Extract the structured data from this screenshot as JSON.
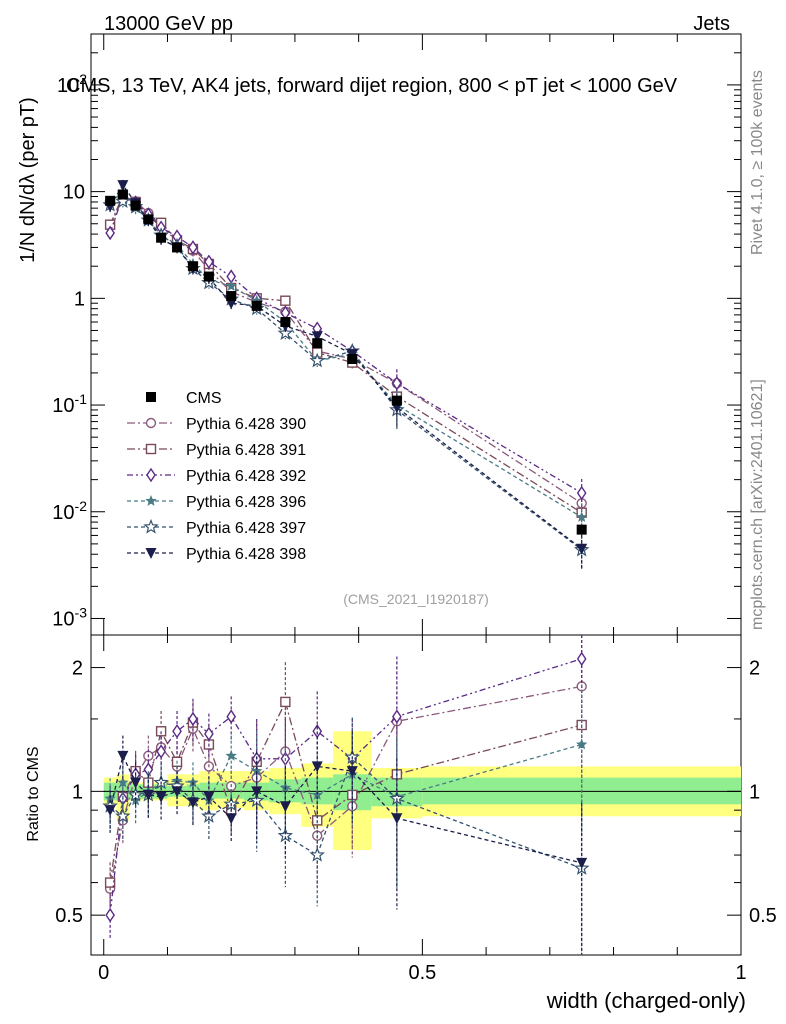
{
  "header": {
    "left": "13000 GeV pp",
    "right": "Jets"
  },
  "side_text": {
    "rivet": "Rivet 4.1.0, ≥ 100k events",
    "mcplots": "mcplots.cern.ch [arXiv:2401.10621]"
  },
  "ylabel": "1/N dN/dλ (per pT)",
  "ratio_ylabel": "Ratio to CMS",
  "watermark": "(CMS_2021_I1920187)",
  "colors": {
    "CMS": "#000000",
    "Pythia 6.428 390": "#8b5a7c",
    "Pythia 6.428 391": "#7a4a58",
    "Pythia 6.428 392": "#5b2a86",
    "Pythia 6.428 396": "#4a7a86",
    "Pythia 6.428 397": "#35526e",
    "Pythia 6.428 398": "#1b1e4a",
    "band_inner": "#90ee90",
    "band_outer": "#ffff80"
  },
  "chart_data": [
    {
      "type": "scatter",
      "title": "CMS, 13 TeV, AK4 jets, forward dijet region, 800 < pT jet < 1000 GeV",
      "xlabel": "width (charged-only)",
      "ylabel": "1/N dN/dλ",
      "yscale": "log",
      "xlim": [
        -0.02,
        1.0
      ],
      "ylim": [
        0.0007,
        300
      ],
      "x": [
        0.01,
        0.03,
        0.05,
        0.07,
        0.09,
        0.115,
        0.14,
        0.165,
        0.2,
        0.24,
        0.285,
        0.335,
        0.39,
        0.46,
        0.75
      ],
      "series": [
        {
          "name": "CMS",
          "values": [
            8.2,
            9.4,
            7.4,
            5.5,
            3.7,
            3.0,
            2.0,
            1.6,
            1.05,
            0.85,
            0.6,
            0.38,
            0.27,
            0.11,
            0.0068
          ]
        },
        {
          "name": "Pythia 6.428 390",
          "values": [
            4.8,
            8.6,
            8.1,
            6.3,
            4.8,
            3.4,
            2.8,
            1.85,
            1.15,
            0.92,
            0.75,
            0.32,
            0.27,
            0.16,
            0.012
          ]
        },
        {
          "name": "Pythia 6.428 391",
          "values": [
            4.9,
            9.2,
            8.0,
            5.7,
            5.1,
            3.5,
            2.9,
            2.1,
            1.25,
            1.0,
            0.95,
            0.31,
            0.25,
            0.12,
            0.0098
          ]
        },
        {
          "name": "Pythia 6.428 392",
          "values": [
            4.1,
            9.1,
            7.9,
            6.1,
            4.6,
            3.8,
            3.0,
            2.2,
            1.6,
            1.0,
            0.73,
            0.52,
            0.32,
            0.16,
            0.015
          ]
        },
        {
          "name": "Pythia 6.428 396",
          "values": [
            8.0,
            9.9,
            7.0,
            5.5,
            3.9,
            3.2,
            2.1,
            1.5,
            1.3,
            0.95,
            0.6,
            0.26,
            0.3,
            0.1,
            0.0089
          ]
        },
        {
          "name": "Pythia 6.428 397",
          "values": [
            7.5,
            8.1,
            7.2,
            5.4,
            3.9,
            3.1,
            1.9,
            1.4,
            0.98,
            0.8,
            0.47,
            0.26,
            0.32,
            0.09,
            0.0044
          ]
        },
        {
          "name": "Pythia 6.428 398",
          "values": [
            7.3,
            11.5,
            7.8,
            5.4,
            3.6,
            3.0,
            1.9,
            1.55,
            0.9,
            0.85,
            0.55,
            0.44,
            0.3,
            0.095,
            0.0045
          ]
        }
      ],
      "legend": [
        "CMS",
        "Pythia 6.428 390",
        "Pythia 6.428 391",
        "Pythia 6.428 392",
        "Pythia 6.428 396",
        "Pythia 6.428 397",
        "Pythia 6.428 398"
      ],
      "ytick_labels": [
        "10^-3",
        "10^-2",
        "10^-1",
        "1",
        "10",
        "10^2"
      ]
    },
    {
      "type": "scatter",
      "title": "Ratio to CMS",
      "xlabel": "width (charged-only)",
      "ylabel": "Ratio to CMS",
      "yscale": "log",
      "xlim": [
        -0.02,
        1.0
      ],
      "ylim": [
        0.4,
        2.4
      ],
      "xtick_labels": [
        "0",
        "0.5",
        "1"
      ],
      "ytick_labels": [
        "0.5",
        "1",
        "2"
      ],
      "x": [
        0.01,
        0.03,
        0.05,
        0.07,
        0.09,
        0.115,
        0.14,
        0.165,
        0.2,
        0.24,
        0.285,
        0.335,
        0.39,
        0.46,
        0.75
      ],
      "series": [
        {
          "name": "Pythia 6.428 390",
          "values": [
            0.58,
            0.85,
            1.09,
            1.22,
            1.28,
            1.15,
            1.42,
            1.15,
            1.03,
            1.08,
            1.25,
            0.78,
            0.92,
            1.48,
            1.8
          ]
        },
        {
          "name": "Pythia 6.428 391",
          "values": [
            0.6,
            0.97,
            1.12,
            1.05,
            1.4,
            1.18,
            1.47,
            1.3,
            0.9,
            1.18,
            1.65,
            0.85,
            0.98,
            1.1,
            1.45
          ]
        },
        {
          "name": "Pythia 6.428 392",
          "values": [
            0.5,
            0.96,
            1.1,
            1.13,
            1.25,
            1.4,
            1.5,
            1.38,
            1.52,
            1.2,
            1.2,
            1.4,
            1.2,
            1.52,
            2.1
          ]
        },
        {
          "name": "Pythia 6.428 396",
          "values": [
            0.96,
            1.05,
            0.95,
            1.0,
            1.05,
            1.06,
            1.05,
            0.95,
            1.22,
            1.12,
            1.02,
            0.98,
            1.1,
            0.97,
            1.3
          ]
        },
        {
          "name": "Pythia 6.428 397",
          "values": [
            0.92,
            0.87,
            0.98,
            0.98,
            1.05,
            1.03,
            0.95,
            0.87,
            0.93,
            0.95,
            0.78,
            0.7,
            1.21,
            0.96,
            0.65
          ]
        },
        {
          "name": "Pythia 6.428 398",
          "values": [
            0.9,
            1.22,
            1.05,
            0.98,
            0.97,
            1.0,
            0.94,
            0.97,
            0.86,
            1.0,
            0.92,
            1.15,
            1.12,
            0.86,
            0.67
          ]
        }
      ],
      "bands": {
        "x_edges": [
          0.0,
          0.02,
          0.04,
          0.06,
          0.08,
          0.1,
          0.13,
          0.15,
          0.18,
          0.22,
          0.26,
          0.31,
          0.36,
          0.42,
          0.5,
          1.0
        ],
        "inner_lo": [
          0.95,
          0.95,
          0.96,
          0.96,
          0.96,
          0.97,
          0.96,
          0.96,
          0.96,
          0.95,
          0.94,
          0.93,
          0.9,
          0.92,
          0.93
        ],
        "inner_hi": [
          1.05,
          1.05,
          1.04,
          1.04,
          1.04,
          1.03,
          1.04,
          1.05,
          1.05,
          1.05,
          1.07,
          1.08,
          1.1,
          1.08,
          1.08
        ],
        "outer_lo": [
          0.93,
          0.85,
          0.95,
          0.95,
          0.95,
          0.92,
          0.92,
          0.9,
          0.91,
          0.9,
          0.88,
          0.82,
          0.72,
          0.86,
          0.87
        ],
        "outer_hi": [
          1.08,
          1.1,
          1.05,
          1.05,
          1.06,
          1.1,
          1.1,
          1.12,
          1.12,
          1.12,
          1.14,
          1.17,
          1.4,
          1.14,
          1.15
        ]
      }
    }
  ]
}
